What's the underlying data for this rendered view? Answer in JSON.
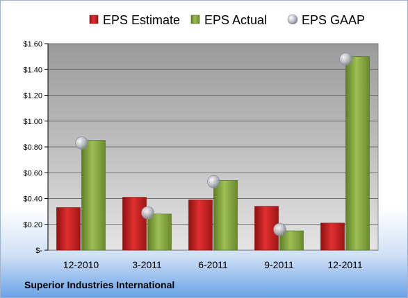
{
  "footer_title": "Superior Industries International",
  "chart_data": {
    "type": "bar",
    "categories": [
      "12-2010",
      "3-2011",
      "6-2011",
      "9-2011",
      "12-2011"
    ],
    "series": [
      {
        "name": "EPS Estimate",
        "type": "bar",
        "color": "#cc2222",
        "values": [
          0.33,
          0.41,
          0.39,
          0.34,
          0.21
        ]
      },
      {
        "name": "EPS Actual",
        "type": "bar",
        "color": "#8aac44",
        "values": [
          0.85,
          0.28,
          0.54,
          0.15,
          1.5
        ]
      },
      {
        "name": "EPS GAAP",
        "type": "scatter",
        "color": "#b0b4bc",
        "values": [
          0.83,
          0.29,
          0.53,
          0.16,
          1.48
        ]
      }
    ],
    "y_ticks": [
      {
        "value": 0,
        "label": "$-"
      },
      {
        "value": 0.2,
        "label": "$0.20"
      },
      {
        "value": 0.4,
        "label": "$0.40"
      },
      {
        "value": 0.6,
        "label": "$0.60"
      },
      {
        "value": 0.8,
        "label": "$0.80"
      },
      {
        "value": 1.0,
        "label": "$1.00"
      },
      {
        "value": 1.2,
        "label": "$1.20"
      },
      {
        "value": 1.4,
        "label": "$1.40"
      },
      {
        "value": 1.6,
        "label": "$1.60"
      }
    ],
    "ylim": [
      0,
      1.6
    ],
    "grid": true,
    "legend_position": "top"
  }
}
